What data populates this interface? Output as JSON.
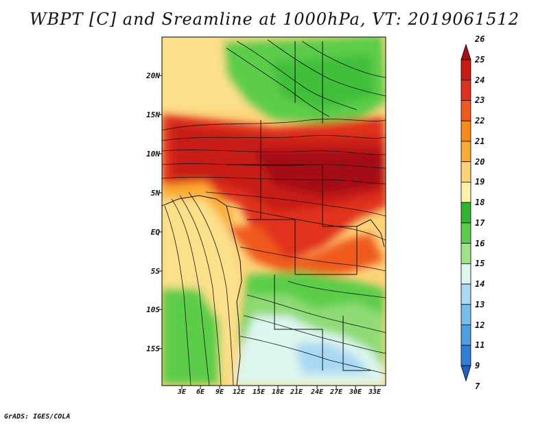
{
  "title": "WBPT [C] and Sreamline at 1000hPa, VT: 2019061512",
  "latitude_labels": [
    "20N",
    "15N",
    "10N",
    "5N",
    "EQ",
    "5S",
    "10S",
    "15S"
  ],
  "longitude_labels": [
    "3E",
    "6E",
    "9E",
    "12E",
    "15E",
    "18E",
    "21E",
    "24E",
    "27E",
    "30E",
    "33E"
  ],
  "colorbar": {
    "labels": [
      "26",
      "25",
      "24",
      "23",
      "22",
      "21",
      "20",
      "19",
      "18",
      "17",
      "16",
      "15",
      "14",
      "13",
      "12",
      "11",
      "9",
      "7"
    ],
    "colors": [
      "#a50f15",
      "#c81b12",
      "#e0301e",
      "#ef5a1f",
      "#f8891a",
      "#fbac32",
      "#fdd379",
      "#fff1a8",
      "#2fb52f",
      "#5bcd49",
      "#a0e383",
      "#ddf6ee",
      "#a8d8f4",
      "#78bce9",
      "#4d9fe0",
      "#2f80d6",
      "#1f61c4"
    ]
  },
  "credit": "GrADS: IGES/COLA"
}
